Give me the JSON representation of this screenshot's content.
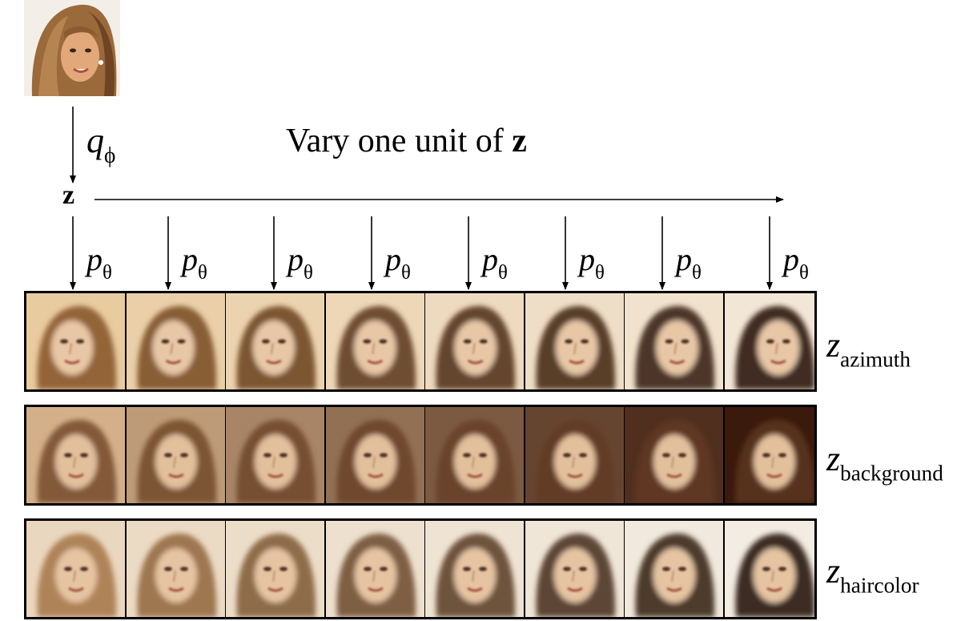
{
  "title": {
    "text_before": "Vary one unit of ",
    "text_bold": "z"
  },
  "encoder": {
    "symbol": "q",
    "subscript": "ϕ"
  },
  "latent": {
    "symbol": "z"
  },
  "decoder": {
    "symbol": "p",
    "subscript": "θ",
    "count": 8
  },
  "rows": [
    {
      "symbol": "z",
      "subscript": "azimuth",
      "bg_start": "#e9cba0",
      "bg_end": "#f2e6d6",
      "hair_start": "#8a5a2e",
      "hair_end": "#2e1a10",
      "face": "#e8c7a6"
    },
    {
      "symbol": "z",
      "subscript": "background",
      "bg_start": "#d4b08a",
      "bg_end": "#3a1a0c",
      "hair_start": "#7a5030",
      "hair_end": "#5a3420",
      "face": "#e3c09c"
    },
    {
      "symbol": "z",
      "subscript": "haircolor",
      "bg_start": "#ead7bf",
      "bg_end": "#f2ece2",
      "hair_start": "#a87a4c",
      "hair_end": "#2a1a12",
      "face": "#e6c4a2"
    }
  ],
  "photo": {
    "bg": "#ffffff",
    "hair": "#9a6a3a",
    "skin": "#e2a87a"
  }
}
